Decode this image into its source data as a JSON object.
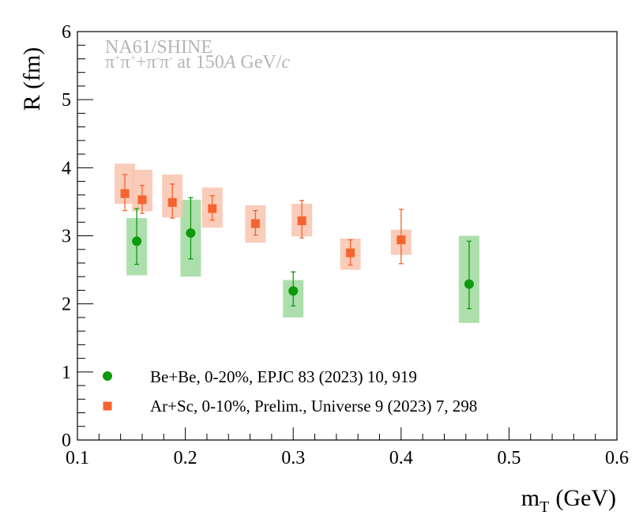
{
  "chart_data": {
    "type": "scatter",
    "xlabel_main": "m",
    "xlabel_sub": "T",
    "xlabel_unit": "(GeV)",
    "ylabel": "R (fm)",
    "xlim": [
      0.1,
      0.6
    ],
    "ylim": [
      0,
      6
    ],
    "x_ticks": [
      "0.1",
      "0.2",
      "0.3",
      "0.4",
      "0.5",
      "0.6"
    ],
    "y_ticks": [
      "0",
      "1",
      "2",
      "3",
      "4",
      "5",
      "6"
    ],
    "annotation_line1": "NA61/SHINE",
    "annotation_line2": {
      "a": "π",
      "a_sup": "+",
      "b": "π",
      "b_sup": "+",
      "c": "+π",
      "c_sup": "-",
      "d": "π",
      "d_sup": "-",
      "e": " at 150",
      "f": "A",
      "g": " GeV/",
      "h": "c"
    },
    "legend_position": "bottom-left",
    "series": [
      {
        "name": "Be+Be, 0-20%, EPJC 83 (2023) 10, 919",
        "marker": "circle",
        "color": "#0b9a0b",
        "box_color": "#a4dca4",
        "points": [
          {
            "x": 0.155,
            "y": 2.92,
            "stat_lo": 2.58,
            "stat_hi": 3.4,
            "sys_lo": 2.42,
            "sys_hi": 3.26
          },
          {
            "x": 0.205,
            "y": 3.04,
            "stat_lo": 2.66,
            "stat_hi": 3.56,
            "sys_lo": 2.4,
            "sys_hi": 3.53
          },
          {
            "x": 0.3,
            "y": 2.19,
            "stat_lo": 1.97,
            "stat_hi": 2.47,
            "sys_lo": 1.8,
            "sys_hi": 2.35
          },
          {
            "x": 0.463,
            "y": 2.29,
            "stat_lo": 1.93,
            "stat_hi": 2.92,
            "sys_lo": 1.72,
            "sys_hi": 3.0
          }
        ]
      },
      {
        "name": "Ar+Sc, 0-10%, Prelim., Universe 9 (2023) 7, 298",
        "marker": "square",
        "color": "#f5632e",
        "box_color": "#f9c7b2",
        "points": [
          {
            "x": 0.144,
            "y": 3.62,
            "stat_lo": 3.37,
            "stat_hi": 3.9,
            "sys_lo": 3.47,
            "sys_hi": 4.06
          },
          {
            "x": 0.16,
            "y": 3.53,
            "stat_lo": 3.33,
            "stat_hi": 3.74,
            "sys_lo": 3.36,
            "sys_hi": 3.97
          },
          {
            "x": 0.188,
            "y": 3.49,
            "stat_lo": 3.26,
            "stat_hi": 3.76,
            "sys_lo": 3.27,
            "sys_hi": 3.9
          },
          {
            "x": 0.225,
            "y": 3.4,
            "stat_lo": 3.23,
            "stat_hi": 3.59,
            "sys_lo": 3.12,
            "sys_hi": 3.71
          },
          {
            "x": 0.265,
            "y": 3.18,
            "stat_lo": 3.01,
            "stat_hi": 3.37,
            "sys_lo": 2.9,
            "sys_hi": 3.45
          },
          {
            "x": 0.308,
            "y": 3.22,
            "stat_lo": 2.97,
            "stat_hi": 3.52,
            "sys_lo": 2.99,
            "sys_hi": 3.47
          },
          {
            "x": 0.353,
            "y": 2.75,
            "stat_lo": 2.57,
            "stat_hi": 2.94,
            "sys_lo": 2.5,
            "sys_hi": 2.96
          },
          {
            "x": 0.4,
            "y": 2.94,
            "stat_lo": 2.59,
            "stat_hi": 3.39,
            "sys_lo": 2.72,
            "sys_hi": 3.09
          }
        ]
      }
    ]
  }
}
